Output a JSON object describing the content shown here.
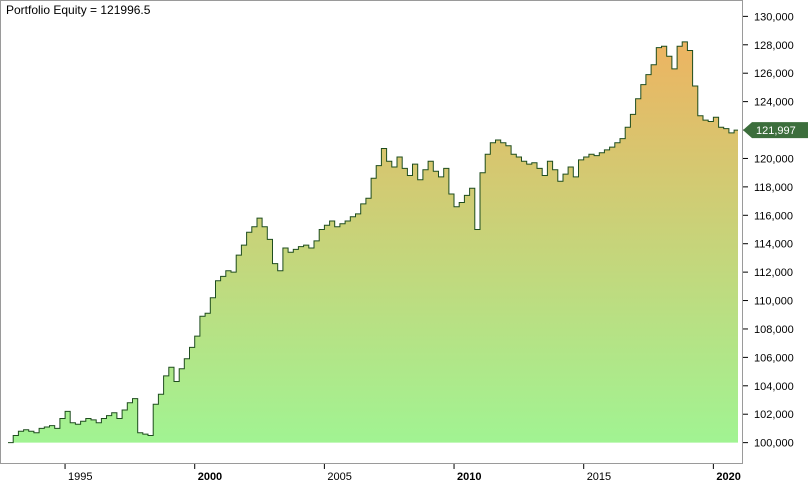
{
  "chart_data": {
    "type": "area",
    "title": "Portfolio Equity = 121996.5",
    "xlabel": "",
    "ylabel": "",
    "xlim": [
      1992.8,
      2020.95
    ],
    "ylim": [
      99200,
      130800
    ],
    "grid": false,
    "yticks": [
      {
        "value": 100000,
        "label": "100,000"
      },
      {
        "value": 102000,
        "label": "102,000"
      },
      {
        "value": 104000,
        "label": "104,000"
      },
      {
        "value": 106000,
        "label": "106,000"
      },
      {
        "value": 108000,
        "label": "108,000"
      },
      {
        "value": 110000,
        "label": "110,000"
      },
      {
        "value": 112000,
        "label": "112,000"
      },
      {
        "value": 114000,
        "label": "114,000"
      },
      {
        "value": 116000,
        "label": "116,000"
      },
      {
        "value": 118000,
        "label": "118,000"
      },
      {
        "value": 120000,
        "label": "120,000"
      },
      {
        "value": 122000,
        "label": "122,000"
      },
      {
        "value": 124000,
        "label": "124,000"
      },
      {
        "value": 126000,
        "label": "126,000"
      },
      {
        "value": 128000,
        "label": "128,000"
      },
      {
        "value": 130000,
        "label": "130,000"
      }
    ],
    "xticks": [
      {
        "value": 1995,
        "label": "1995",
        "bold": false
      },
      {
        "value": 2000,
        "label": "2000",
        "bold": true
      },
      {
        "value": 2005,
        "label": "2005",
        "bold": false
      },
      {
        "value": 2010,
        "label": "2010",
        "bold": true
      },
      {
        "value": 2015,
        "label": "2015",
        "bold": false
      },
      {
        "value": 2020,
        "label": "2020",
        "bold": true
      }
    ],
    "last_value_label": "121,997",
    "last_value": 121996.5,
    "colors": {
      "line": "#1e4d1e",
      "fill_bottom": "#98fb98",
      "fill_top": "#f5ad5c",
      "last_marker": "#3c6e3c",
      "axis": "#000000"
    },
    "x": [
      1992.8,
      1993.0,
      1993.2,
      1993.4,
      1993.6,
      1993.8,
      1994.0,
      1994.2,
      1994.4,
      1994.6,
      1994.8,
      1995.0,
      1995.2,
      1995.4,
      1995.6,
      1995.8,
      1996.0,
      1996.2,
      1996.4,
      1996.6,
      1996.8,
      1997.0,
      1997.2,
      1997.4,
      1997.6,
      1997.8,
      1998.0,
      1998.2,
      1998.4,
      1998.6,
      1998.8,
      1999.0,
      1999.2,
      1999.4,
      1999.6,
      1999.8,
      2000.0,
      2000.2,
      2000.4,
      2000.6,
      2000.8,
      2001.0,
      2001.2,
      2001.4,
      2001.6,
      2001.8,
      2002.0,
      2002.2,
      2002.4,
      2002.6,
      2002.8,
      2003.0,
      2003.2,
      2003.4,
      2003.6,
      2003.8,
      2004.0,
      2004.2,
      2004.4,
      2004.6,
      2004.8,
      2005.0,
      2005.2,
      2005.4,
      2005.6,
      2005.8,
      2006.0,
      2006.2,
      2006.4,
      2006.6,
      2006.8,
      2007.0,
      2007.2,
      2007.4,
      2007.6,
      2007.8,
      2008.0,
      2008.2,
      2008.4,
      2008.6,
      2008.8,
      2009.0,
      2009.2,
      2009.4,
      2009.6,
      2009.8,
      2010.0,
      2010.2,
      2010.4,
      2010.6,
      2010.8,
      2011.0,
      2011.2,
      2011.4,
      2011.6,
      2011.8,
      2012.0,
      2012.2,
      2012.4,
      2012.6,
      2012.8,
      2013.0,
      2013.2,
      2013.4,
      2013.6,
      2013.8,
      2014.0,
      2014.2,
      2014.4,
      2014.6,
      2014.8,
      2015.0,
      2015.2,
      2015.4,
      2015.6,
      2015.8,
      2016.0,
      2016.2,
      2016.4,
      2016.6,
      2016.8,
      2017.0,
      2017.2,
      2017.4,
      2017.6,
      2017.8,
      2018.0,
      2018.2,
      2018.4,
      2018.6,
      2018.8,
      2019.0,
      2019.2,
      2019.4,
      2019.6,
      2019.8,
      2020.0,
      2020.2,
      2020.4,
      2020.6,
      2020.8
    ],
    "values": [
      100000,
      100500,
      100800,
      100900,
      100800,
      100700,
      101000,
      101100,
      101200,
      101000,
      101700,
      102200,
      101400,
      101300,
      101500,
      101700,
      101600,
      101400,
      101700,
      101900,
      102100,
      101700,
      102300,
      102800,
      103100,
      100700,
      100600,
      100500,
      102700,
      103400,
      104700,
      105300,
      104300,
      105200,
      105900,
      106700,
      107500,
      108900,
      109100,
      110200,
      111400,
      111700,
      112100,
      112000,
      113200,
      113900,
      114800,
      115200,
      115800,
      115200,
      114300,
      112600,
      112100,
      113700,
      113400,
      113600,
      113800,
      113900,
      113700,
      114200,
      115000,
      115300,
      115600,
      115200,
      115400,
      115600,
      115900,
      116100,
      116800,
      117200,
      118600,
      119500,
      120700,
      119800,
      119400,
      120100,
      119300,
      118800,
      119600,
      118500,
      119200,
      119800,
      119100,
      118700,
      119300,
      117500,
      116600,
      116900,
      117400,
      117900,
      115000,
      119000,
      120300,
      121100,
      121300,
      121100,
      120900,
      120300,
      120100,
      119800,
      119600,
      119700,
      119300,
      118800,
      119800,
      119200,
      118400,
      118900,
      119400,
      118700,
      119900,
      120100,
      120300,
      120200,
      120400,
      120600,
      120800,
      121100,
      121400,
      122200,
      123100,
      124200,
      125200,
      125900,
      126600,
      127800,
      127900,
      127200,
      126300,
      127900,
      128200,
      127600,
      125100,
      123000,
      122700,
      122600,
      122900,
      122200,
      122100,
      121800,
      121996.5
    ]
  }
}
